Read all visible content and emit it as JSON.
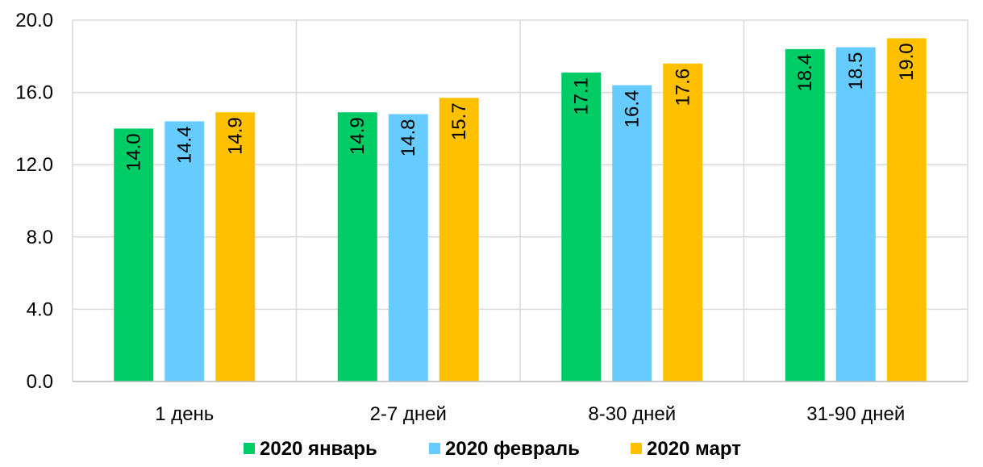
{
  "chart_data": {
    "type": "bar",
    "categories": [
      "1 день",
      "2-7 дней",
      "8-30 дней",
      "31-90 дней"
    ],
    "series": [
      {
        "name": "2020 январь",
        "color": "#00CC66",
        "values": [
          14.0,
          14.9,
          17.1,
          18.4
        ]
      },
      {
        "name": "2020 февраль",
        "color": "#66CCFF",
        "values": [
          14.4,
          14.8,
          16.4,
          18.5
        ]
      },
      {
        "name": "2020 март",
        "color": "#FFC000",
        "values": [
          14.9,
          15.7,
          17.6,
          19.0
        ]
      }
    ],
    "ylim": [
      0,
      20
    ],
    "yticks": [
      0,
      4,
      8,
      12,
      16,
      20
    ],
    "ytick_labels": [
      "0.0",
      "4.0",
      "8.0",
      "12.0",
      "16.0",
      "20.0"
    ],
    "data_labels": [
      [
        "14.0",
        "14.9",
        "17.1",
        "18.4"
      ],
      [
        "14.4",
        "14.8",
        "16.4",
        "18.5"
      ],
      [
        "14.9",
        "15.7",
        "17.6",
        "19.0"
      ]
    ],
    "grid": true,
    "legend_position": "bottom",
    "title": "",
    "xlabel": "",
    "ylabel": ""
  }
}
